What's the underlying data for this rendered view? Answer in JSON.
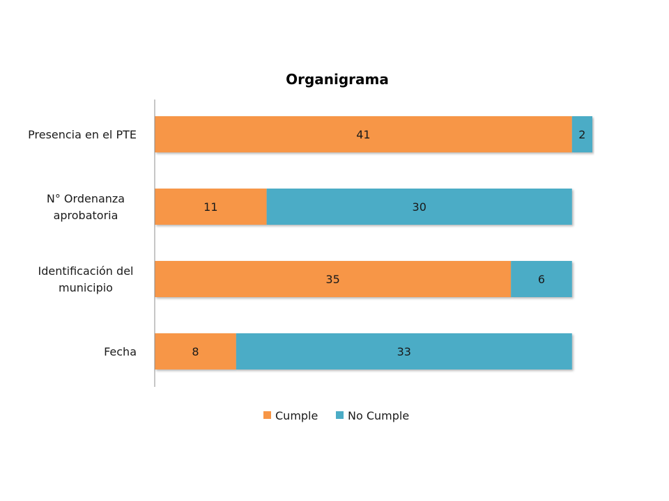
{
  "chart_data": {
    "type": "bar",
    "orientation": "horizontal",
    "stacked": true,
    "title": "Organigrama",
    "categories": [
      [
        "Presencia en el PTE"
      ],
      [
        "N° Ordenanza",
        "aprobatoria"
      ],
      [
        "Identificación del",
        "municipio"
      ],
      [
        "Fecha"
      ]
    ],
    "series": [
      {
        "name": "Cumple",
        "color": "#F79646",
        "values": [
          41,
          11,
          35,
          8
        ]
      },
      {
        "name": "No Cumple",
        "color": "#4BACC6",
        "values": [
          2,
          30,
          6,
          33
        ]
      }
    ],
    "xlim": [
      0,
      43
    ],
    "xaxis_visible": false,
    "grid": false,
    "legend_position": "bottom",
    "data_labels": true
  }
}
